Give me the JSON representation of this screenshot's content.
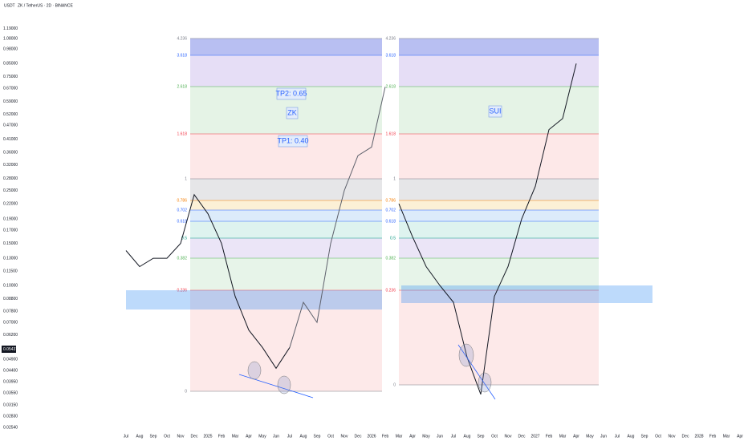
{
  "header": {
    "currency": "USDT",
    "symbol": "ZK / TetherUS · 2D · BINANCE"
  },
  "current_price": "0.05437",
  "annotations": {
    "tp2": "TP2: 0.65",
    "zk": "ZK",
    "tp1": "TP1: 0.40",
    "sui": "SUI"
  },
  "fib_levels": [
    "4.236",
    "3.618",
    "2.618",
    "1.618",
    "1",
    "0.786",
    "0.702",
    "0.618",
    "0.5",
    "0.382",
    "0.236",
    "0"
  ],
  "chart_data": {
    "type": "line",
    "log_scale": true,
    "ylim": [
      0.0241,
      1.57
    ],
    "yticks": [
      {
        "value": 1.19,
        "label": "1.19000"
      },
      {
        "value": 1.08,
        "label": "1.08000"
      },
      {
        "value": 0.98,
        "label": "0.98000"
      },
      {
        "value": 0.85,
        "label": "0.85000"
      },
      {
        "value": 0.75,
        "label": "0.75000"
      },
      {
        "value": 0.67,
        "label": "0.67000"
      },
      {
        "value": 0.59,
        "label": "0.59000"
      },
      {
        "value": 0.52,
        "label": "0.52000"
      },
      {
        "value": 0.47,
        "label": "0.47000"
      },
      {
        "value": 0.41,
        "label": "0.41000"
      },
      {
        "value": 0.36,
        "label": "0.36000"
      },
      {
        "value": 0.32,
        "label": "0.32000"
      },
      {
        "value": 0.28,
        "label": "0.28000"
      },
      {
        "value": 0.25,
        "label": "0.25000"
      },
      {
        "value": 0.22,
        "label": "0.22000"
      },
      {
        "value": 0.19,
        "label": "0.19000"
      },
      {
        "value": 0.17,
        "label": "0.17000"
      },
      {
        "value": 0.15,
        "label": "0.15000"
      },
      {
        "value": 0.13,
        "label": "0.13000"
      },
      {
        "value": 0.115,
        "label": "0.11500"
      },
      {
        "value": 0.1,
        "label": "0.10000"
      },
      {
        "value": 0.088,
        "label": "0.08800"
      },
      {
        "value": 0.078,
        "label": "0.07800"
      },
      {
        "value": 0.07,
        "label": "0.07000"
      },
      {
        "value": 0.062,
        "label": "0.06200"
      },
      {
        "value": 0.049,
        "label": "0.04900"
      },
      {
        "value": 0.044,
        "label": "0.04400"
      },
      {
        "value": 0.0395,
        "label": "0.03950"
      },
      {
        "value": 0.0355,
        "label": "0.03550"
      },
      {
        "value": 0.0315,
        "label": "0.03150"
      },
      {
        "value": 0.0283,
        "label": "0.02830"
      },
      {
        "value": 0.0254,
        "label": "0.02540"
      }
    ],
    "categories": [
      "Jul",
      "Aug",
      "Sep",
      "Oct",
      "Nov",
      "Dec",
      "2025",
      "Feb",
      "Mar",
      "Apr",
      "May",
      "Jun",
      "Jul",
      "Aug",
      "Sep",
      "Oct",
      "Nov",
      "Dec",
      "2026",
      "Feb",
      "Mar",
      "Apr",
      "May",
      "Jun",
      "Jul",
      "Aug",
      "Sep",
      "Oct",
      "Nov",
      "Dec",
      "2027",
      "Feb",
      "Mar",
      "Apr",
      "May",
      "Jun",
      "Jul",
      "Aug",
      "Sep",
      "Oct",
      "Nov",
      "Dec",
      "2028",
      "Feb",
      "Mar",
      "Apr"
    ],
    "series": [
      {
        "color": "#131722",
        "values": [
          0.14,
          0.12,
          0.13,
          0.13,
          0.15,
          0.24,
          0.2,
          0.15,
          0.09,
          0.065,
          0.055,
          0.045,
          0.055,
          null,
          null,
          null,
          null,
          null,
          null,
          null,
          null,
          null,
          null,
          null,
          null,
          null,
          null,
          null,
          null,
          null,
          null,
          null,
          null,
          null,
          null,
          null,
          null,
          null,
          null,
          null,
          null,
          null,
          null,
          null,
          null,
          null
        ]
      },
      {
        "color": "#5d606b",
        "values": [
          null,
          null,
          null,
          null,
          null,
          null,
          null,
          null,
          null,
          null,
          null,
          null,
          0.055,
          0.085,
          0.07,
          0.15,
          0.25,
          0.35,
          0.38,
          0.68,
          null,
          null,
          null,
          null,
          null,
          null,
          null,
          null,
          null,
          null,
          null,
          null,
          null,
          null,
          null,
          null,
          null,
          null,
          null,
          null,
          null,
          null,
          null,
          null,
          null,
          null
        ]
      },
      {
        "color": "#131722",
        "values": [
          null,
          null,
          null,
          null,
          null,
          null,
          null,
          null,
          null,
          null,
          null,
          null,
          null,
          null,
          null,
          null,
          null,
          null,
          null,
          null,
          0.22,
          0.16,
          0.12,
          0.1,
          0.085,
          0.05,
          0.035,
          0.09,
          0.12,
          0.19,
          0.26,
          0.45,
          0.5,
          0.85,
          null,
          null,
          null,
          null,
          null,
          null,
          null,
          null,
          null,
          null,
          null,
          null
        ]
      }
    ]
  }
}
